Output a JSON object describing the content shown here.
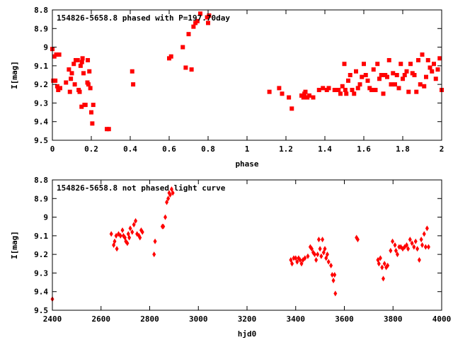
{
  "chart_data": [
    {
      "type": "scatter",
      "title": "154826-5658.8 phased with P=197.70day",
      "xlabel": "phase",
      "ylabel": "I[mag]",
      "xlim": [
        0,
        2
      ],
      "ylim": [
        8.8,
        9.5
      ],
      "y_inverted": true,
      "grid": false,
      "xticks": [
        "0",
        "0.2",
        "0.4",
        "0.6",
        "0.8",
        "1",
        "1.2",
        "1.4",
        "1.6",
        "1.8",
        "2"
      ],
      "yticks": [
        "8.8",
        "8.9",
        "9",
        "9.1",
        "9.2",
        "9.3",
        "9.4",
        "9.5"
      ],
      "marker": "square",
      "color": "#ff0000",
      "points": [
        [
          0.0,
          9.01
        ],
        [
          0.005,
          9.18
        ],
        [
          0.01,
          9.05
        ],
        [
          0.015,
          9.18
        ],
        [
          0.02,
          9.04
        ],
        [
          0.025,
          9.21
        ],
        [
          0.03,
          9.23
        ],
        [
          0.035,
          9.04
        ],
        [
          0.04,
          9.22
        ],
        [
          0.07,
          9.19
        ],
        [
          0.085,
          9.12
        ],
        [
          0.09,
          9.24
        ],
        [
          0.095,
          9.17
        ],
        [
          0.1,
          9.14
        ],
        [
          0.11,
          9.09
        ],
        [
          0.115,
          9.2
        ],
        [
          0.12,
          9.07
        ],
        [
          0.13,
          9.07
        ],
        [
          0.135,
          9.23
        ],
        [
          0.14,
          9.24
        ],
        [
          0.145,
          9.1
        ],
        [
          0.15,
          9.32
        ],
        [
          0.152,
          9.08
        ],
        [
          0.155,
          9.06
        ],
        [
          0.16,
          9.14
        ],
        [
          0.165,
          9.31
        ],
        [
          0.17,
          9.31
        ],
        [
          0.18,
          9.19
        ],
        [
          0.182,
          9.07
        ],
        [
          0.185,
          9.2
        ],
        [
          0.19,
          9.13
        ],
        [
          0.195,
          9.22
        ],
        [
          0.2,
          9.35
        ],
        [
          0.205,
          9.41
        ],
        [
          0.21,
          9.31
        ],
        [
          0.28,
          9.44
        ],
        [
          0.29,
          9.44
        ],
        [
          0.41,
          9.13
        ],
        [
          0.415,
          9.2
        ],
        [
          0.6,
          9.06
        ],
        [
          0.61,
          9.05
        ],
        [
          0.67,
          9.0
        ],
        [
          0.685,
          9.11
        ],
        [
          0.7,
          8.93
        ],
        [
          0.715,
          9.12
        ],
        [
          0.725,
          8.89
        ],
        [
          0.735,
          8.87
        ],
        [
          0.745,
          8.86
        ],
        [
          0.76,
          8.82
        ],
        [
          0.795,
          8.84
        ],
        [
          0.8,
          8.87
        ],
        [
          0.805,
          8.83
        ],
        [
          1.115,
          9.24
        ],
        [
          1.165,
          9.22
        ],
        [
          1.18,
          9.25
        ],
        [
          1.215,
          9.27
        ],
        [
          1.23,
          9.33
        ],
        [
          1.28,
          9.26
        ],
        [
          1.29,
          9.27
        ],
        [
          1.295,
          9.25
        ],
        [
          1.3,
          9.24
        ],
        [
          1.31,
          9.27
        ],
        [
          1.32,
          9.26
        ],
        [
          1.34,
          9.27
        ],
        [
          1.37,
          9.23
        ],
        [
          1.39,
          9.22
        ],
        [
          1.41,
          9.23
        ],
        [
          1.42,
          9.22
        ],
        [
          1.45,
          9.23
        ],
        [
          1.47,
          9.23
        ],
        [
          1.48,
          9.25
        ],
        [
          1.49,
          9.21
        ],
        [
          1.5,
          9.09
        ],
        [
          1.505,
          9.23
        ],
        [
          1.51,
          9.25
        ],
        [
          1.52,
          9.18
        ],
        [
          1.53,
          9.15
        ],
        [
          1.54,
          9.23
        ],
        [
          1.55,
          9.25
        ],
        [
          1.56,
          9.13
        ],
        [
          1.57,
          9.22
        ],
        [
          1.58,
          9.2
        ],
        [
          1.59,
          9.16
        ],
        [
          1.6,
          9.09
        ],
        [
          1.61,
          9.15
        ],
        [
          1.62,
          9.18
        ],
        [
          1.63,
          9.22
        ],
        [
          1.64,
          9.23
        ],
        [
          1.65,
          9.12
        ],
        [
          1.66,
          9.23
        ],
        [
          1.67,
          9.09
        ],
        [
          1.68,
          9.17
        ],
        [
          1.69,
          9.15
        ],
        [
          1.7,
          9.25
        ],
        [
          1.71,
          9.15
        ],
        [
          1.72,
          9.16
        ],
        [
          1.73,
          9.07
        ],
        [
          1.74,
          9.2
        ],
        [
          1.75,
          9.14
        ],
        [
          1.76,
          9.2
        ],
        [
          1.77,
          9.15
        ],
        [
          1.78,
          9.22
        ],
        [
          1.79,
          9.09
        ],
        [
          1.8,
          9.17
        ],
        [
          1.81,
          9.15
        ],
        [
          1.82,
          9.13
        ],
        [
          1.83,
          9.24
        ],
        [
          1.84,
          9.09
        ],
        [
          1.85,
          9.14
        ],
        [
          1.86,
          9.15
        ],
        [
          1.87,
          9.24
        ],
        [
          1.88,
          9.07
        ],
        [
          1.89,
          9.2
        ],
        [
          1.9,
          9.04
        ],
        [
          1.91,
          9.21
        ],
        [
          1.92,
          9.16
        ],
        [
          1.93,
          9.07
        ],
        [
          1.94,
          9.11
        ],
        [
          1.95,
          9.13
        ],
        [
          1.96,
          9.09
        ],
        [
          1.97,
          9.17
        ],
        [
          1.98,
          9.12
        ],
        [
          1.99,
          9.06
        ],
        [
          2.0,
          9.23
        ]
      ]
    },
    {
      "type": "scatter",
      "title": "154826-5658.8 not phased light curve",
      "xlabel": "hjd0",
      "ylabel": "I[mag]",
      "xlim": [
        2400,
        4000
      ],
      "ylim": [
        8.8,
        9.5
      ],
      "y_inverted": true,
      "grid": false,
      "xticks": [
        "2400",
        "2600",
        "2800",
        "3000",
        "3200",
        "3400",
        "3600",
        "3800",
        "4000"
      ],
      "yticks": [
        "8.8",
        "8.9",
        "9",
        "9.1",
        "9.2",
        "9.3",
        "9.4",
        "9.5"
      ],
      "marker": "diamond",
      "color": "#ff0000",
      "points": [
        [
          2400,
          9.44
        ],
        [
          2642,
          9.09
        ],
        [
          2652,
          9.15
        ],
        [
          2656,
          9.13
        ],
        [
          2662,
          9.1
        ],
        [
          2665,
          9.17
        ],
        [
          2672,
          9.09
        ],
        [
          2680,
          9.1
        ],
        [
          2688,
          9.07
        ],
        [
          2692,
          9.1
        ],
        [
          2698,
          9.11
        ],
        [
          2702,
          9.13
        ],
        [
          2708,
          9.14
        ],
        [
          2712,
          9.09
        ],
        [
          2716,
          9.11
        ],
        [
          2720,
          9.06
        ],
        [
          2728,
          9.08
        ],
        [
          2735,
          9.04
        ],
        [
          2742,
          9.02
        ],
        [
          2748,
          9.09
        ],
        [
          2756,
          9.1
        ],
        [
          2760,
          9.11
        ],
        [
          2765,
          9.07
        ],
        [
          2770,
          9.08
        ],
        [
          2818,
          9.2
        ],
        [
          2822,
          9.13
        ],
        [
          2852,
          9.05
        ],
        [
          2856,
          9.05
        ],
        [
          2864,
          9.0
        ],
        [
          2870,
          8.92
        ],
        [
          2876,
          8.9
        ],
        [
          2880,
          8.87
        ],
        [
          2884,
          8.88
        ],
        [
          2890,
          8.85
        ],
        [
          2895,
          8.87
        ],
        [
          3380,
          9.23
        ],
        [
          3385,
          9.25
        ],
        [
          3392,
          9.22
        ],
        [
          3400,
          9.22
        ],
        [
          3406,
          9.24
        ],
        [
          3412,
          9.22
        ],
        [
          3418,
          9.23
        ],
        [
          3424,
          9.25
        ],
        [
          3430,
          9.23
        ],
        [
          3438,
          9.22
        ],
        [
          3450,
          9.21
        ],
        [
          3460,
          9.16
        ],
        [
          3466,
          9.17
        ],
        [
          3472,
          9.19
        ],
        [
          3478,
          9.2
        ],
        [
          3484,
          9.23
        ],
        [
          3490,
          9.2
        ],
        [
          3495,
          9.12
        ],
        [
          3500,
          9.17
        ],
        [
          3505,
          9.21
        ],
        [
          3510,
          9.12
        ],
        [
          3515,
          9.19
        ],
        [
          3520,
          9.17
        ],
        [
          3525,
          9.22
        ],
        [
          3530,
          9.2
        ],
        [
          3535,
          9.24
        ],
        [
          3545,
          9.26
        ],
        [
          3550,
          9.31
        ],
        [
          3555,
          9.34
        ],
        [
          3560,
          9.31
        ],
        [
          3563,
          9.41
        ],
        [
          3650,
          9.11
        ],
        [
          3655,
          9.12
        ],
        [
          3738,
          9.23
        ],
        [
          3742,
          9.25
        ],
        [
          3748,
          9.22
        ],
        [
          3755,
          9.27
        ],
        [
          3760,
          9.33
        ],
        [
          3765,
          9.25
        ],
        [
          3772,
          9.27
        ],
        [
          3778,
          9.26
        ],
        [
          3790,
          9.18
        ],
        [
          3798,
          9.13
        ],
        [
          3808,
          9.15
        ],
        [
          3812,
          9.18
        ],
        [
          3818,
          9.2
        ],
        [
          3825,
          9.16
        ],
        [
          3832,
          9.16
        ],
        [
          3840,
          9.17
        ],
        [
          3848,
          9.16
        ],
        [
          3856,
          9.15
        ],
        [
          3862,
          9.17
        ],
        [
          3870,
          9.12
        ],
        [
          3878,
          9.14
        ],
        [
          3886,
          9.16
        ],
        [
          3893,
          9.13
        ],
        [
          3900,
          9.17
        ],
        [
          3908,
          9.23
        ],
        [
          3916,
          9.12
        ],
        [
          3920,
          9.15
        ],
        [
          3928,
          9.09
        ],
        [
          3934,
          9.16
        ],
        [
          3940,
          9.06
        ],
        [
          3946,
          9.16
        ]
      ]
    }
  ]
}
